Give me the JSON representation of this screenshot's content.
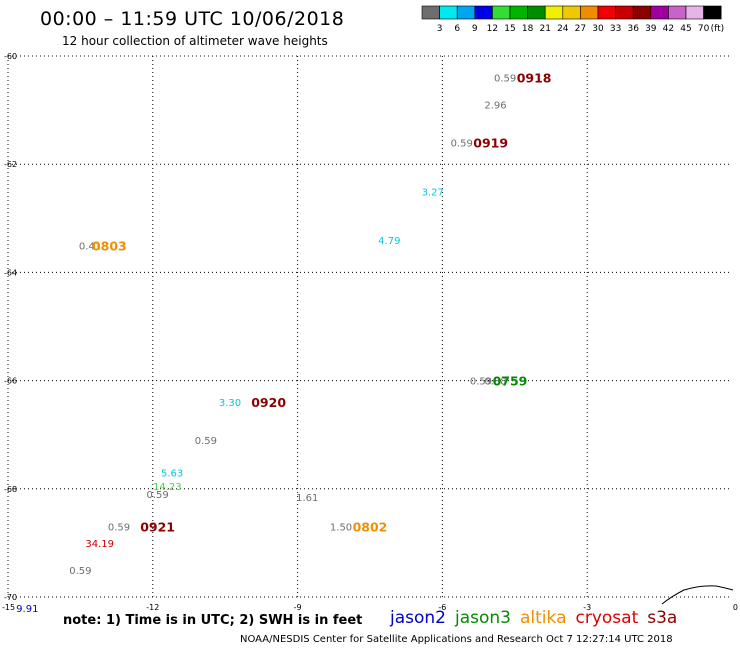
{
  "header": {
    "title": "00:00 – 11:59 UTC 10/06/2018",
    "subtitle": "12 hour collection of altimeter wave heights"
  },
  "color_scale": {
    "colors": [
      "#6e6e6e",
      "#00e8f0",
      "#00a6f0",
      "#0000e8",
      "#33dd33",
      "#00b400",
      "#008c00",
      "#f0f000",
      "#f0c800",
      "#f08c00",
      "#f00000",
      "#c80000",
      "#8c0000",
      "#a000a0",
      "#c864c8",
      "#e6b4e6",
      "#000000"
    ],
    "labels": [
      "3",
      "6",
      "9",
      "12",
      "15",
      "18",
      "21",
      "24",
      "27",
      "30",
      "33",
      "36",
      "39",
      "42",
      "45",
      "70"
    ],
    "unit": "(ft)"
  },
  "chart_data": {
    "type": "scatter",
    "title": "00:00 – 11:59 UTC 10/06/2018",
    "subtitle": "12 hour collection of altimeter wave heights",
    "xlim": [
      -15,
      0
    ],
    "ylim": [
      -70,
      -60
    ],
    "x_ticks": [
      "-15",
      "-12",
      "-9",
      "-6",
      "-3",
      "0"
    ],
    "x_tick_values": [
      -15,
      -12,
      -9,
      -6,
      -3,
      0
    ],
    "y_ticks": [
      "-60",
      "-62",
      "-64",
      "-66",
      "-68",
      "-70"
    ],
    "y_tick_values": [
      -60,
      -62,
      -64,
      -66,
      -68,
      -70
    ],
    "grid": true,
    "wave_heights": [
      {
        "lon": -4.7,
        "lat": -60.4,
        "label": "0.59",
        "color": "#6e6e6e"
      },
      {
        "lon": -4.9,
        "lat": -60.9,
        "label": "2.96",
        "color": "#6e6e6e"
      },
      {
        "lon": -5.6,
        "lat": -61.6,
        "label": "0.59",
        "color": "#6e6e6e"
      },
      {
        "lon": -6.2,
        "lat": -62.5,
        "label": "3.27",
        "color": "#00c8e6"
      },
      {
        "lon": -7.1,
        "lat": -63.4,
        "label": "4.79",
        "color": "#00c8e6"
      },
      {
        "lon": -13.3,
        "lat": -63.5,
        "label": "0.41",
        "color": "#6e6e6e"
      },
      {
        "lon": -5.2,
        "lat": -66.0,
        "label": "0.59",
        "color": "#6e6e6e"
      },
      {
        "lon": -4.9,
        "lat": -66.0,
        "label": "0.88",
        "color": "#6e6e6e"
      },
      {
        "lon": -10.4,
        "lat": -66.4,
        "label": "3.30",
        "color": "#00c8e6"
      },
      {
        "lon": -10.9,
        "lat": -67.1,
        "label": "0.59",
        "color": "#6e6e6e"
      },
      {
        "lon": -11.6,
        "lat": -67.7,
        "label": "5.63",
        "color": "#00c8e6"
      },
      {
        "lon": -11.7,
        "lat": -67.95,
        "label": "14.23",
        "color": "#33dd33"
      },
      {
        "lon": -11.9,
        "lat": -68.1,
        "label": "0.59",
        "color": "#6e6e6e"
      },
      {
        "lon": -8.8,
        "lat": -68.15,
        "label": "1.61",
        "color": "#6e6e6e"
      },
      {
        "lon": -12.7,
        "lat": -68.7,
        "label": "0.59",
        "color": "#6e6e6e"
      },
      {
        "lon": -8.1,
        "lat": -68.7,
        "label": "1.50",
        "color": "#6e6e6e"
      },
      {
        "lon": -13.1,
        "lat": -69.0,
        "label": "34.19",
        "color": "#c80000"
      },
      {
        "lon": -13.5,
        "lat": -69.5,
        "label": "0.59",
        "color": "#6e6e6e"
      },
      {
        "lon": -14.6,
        "lat": -70.2,
        "label": "9.91",
        "color": "#0000c8"
      }
    ],
    "pass_times": [
      {
        "lon": -4.1,
        "lat": -60.4,
        "label": "0918",
        "color": "#8c0000"
      },
      {
        "lon": -5.0,
        "lat": -61.6,
        "label": "0919",
        "color": "#8c0000"
      },
      {
        "lon": -12.9,
        "lat": -63.5,
        "label": "0803",
        "color": "#f09000"
      },
      {
        "lon": -4.6,
        "lat": -66.0,
        "label": "0759",
        "color": "#008c00"
      },
      {
        "lon": -9.6,
        "lat": -66.4,
        "label": "0920",
        "color": "#8c0000"
      },
      {
        "lon": -11.9,
        "lat": -68.7,
        "label": "0921",
        "color": "#8c0000"
      },
      {
        "lon": -7.5,
        "lat": -68.7,
        "label": "0802",
        "color": "#f09000"
      }
    ]
  },
  "footer": {
    "note": "note:  1) Time is in UTC;  2) SWH is in feet",
    "legend": [
      {
        "name": "jason2",
        "color": "#0000c8"
      },
      {
        "name": "jason3",
        "color": "#008c00"
      },
      {
        "name": "altika",
        "color": "#f09000"
      },
      {
        "name": "cryosat",
        "color": "#dd0000"
      },
      {
        "name": "s3a",
        "color": "#8c0000"
      }
    ],
    "credit": "NOAA/NESDIS Center for Satellite Applications and Research     Oct  7 12:27:14 UTC 2018"
  }
}
